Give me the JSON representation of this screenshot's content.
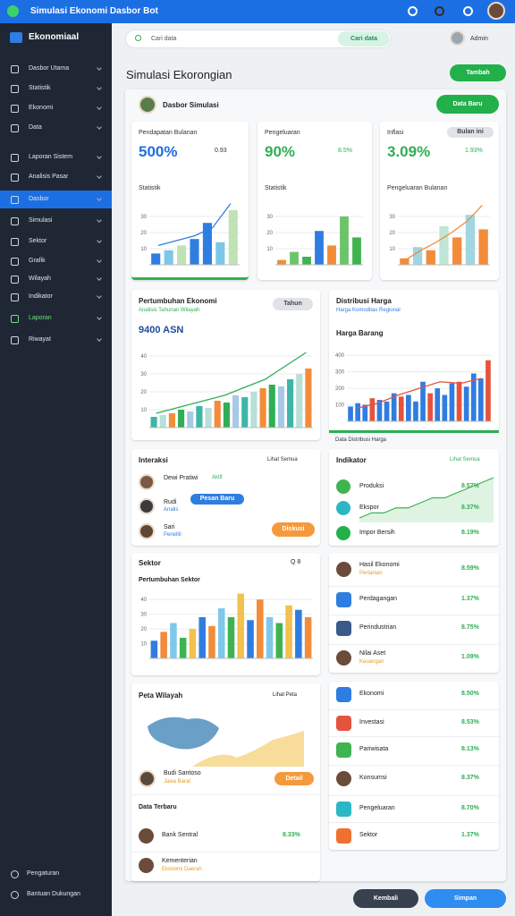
{
  "topbar": {
    "title": "Simulasi Ekonomi Dasbor Bot"
  },
  "sidebar": {
    "brand": "Ekonomiaal",
    "active": 6,
    "highlight": 12,
    "menu": [
      "Dasbor Utama",
      "Statistik",
      "Ekonomi",
      "Data",
      "Laporan Sistem",
      "Analisis Pasar",
      "Dasbor",
      "Simulasi",
      "Sektor",
      "Grafik",
      "Wilayah",
      "Indikator",
      "Laporan",
      "Riwayat"
    ],
    "bottom_menu": [
      "Pengaturan",
      "Bantuan Dukungan"
    ]
  },
  "search": {
    "placeholder": "Cari data",
    "button": "Cari data",
    "user": "Admin"
  },
  "page": {
    "title": "Simulasi Ekorongian",
    "button": "Tambah",
    "subtitle": "Dasbor Simulasi",
    "button2": "Data Baru"
  },
  "cards": [
    {
      "title": "Pendapatan Bulanan",
      "value": "500%",
      "delta": "0.93",
      "chart_title": "Statistik",
      "chart": {
        "ylim": [
          0,
          40
        ],
        "yticks": [
          10,
          20,
          30
        ],
        "values": [
          7,
          9,
          12,
          16,
          26,
          14,
          34
        ],
        "palette": [
          "#2f7de1",
          "#7cc7e8",
          "#bfe3b4",
          "#2f7de1"
        ],
        "line": [
          12,
          15,
          18,
          23,
          38
        ],
        "line_color": "#2f7de1"
      }
    },
    {
      "title": "Pengeluaran",
      "value": "90%",
      "delta": "8.5%",
      "chart_title": "Statistik",
      "chart": {
        "ylim": [
          0,
          40
        ],
        "yticks": [
          10,
          20,
          30
        ],
        "values": [
          3,
          8,
          5,
          21,
          12,
          30,
          17
        ],
        "palette": [
          "#f28c3a",
          "#6cc46a",
          "#3fb34f",
          "#2f7de1"
        ]
      }
    },
    {
      "title": "Inflasi",
      "value": "3.09%",
      "delta": "1.93%",
      "pill": "Bulan ini",
      "chart_title": "Pengeluaran Bulanan",
      "chart": {
        "ylim": [
          0,
          40
        ],
        "yticks": [
          10,
          20,
          30
        ],
        "values": [
          4,
          11,
          9,
          24,
          17,
          31,
          22
        ],
        "palette": [
          "#f28c3a",
          "#9fd6e0",
          "#f28c3a",
          "#bfe6d6"
        ],
        "line": [
          3,
          9,
          14,
          20,
          27,
          37
        ],
        "line_color": "#f28c3a"
      }
    }
  ],
  "growth": {
    "title": "Pertumbuhan Ekonomi",
    "subtitle": "Analisis Tahunan Wilayah",
    "pill": "Tahun",
    "value": "9400 ASN",
    "chart": {
      "ylim": [
        0,
        45
      ],
      "yticks": [
        10,
        20,
        30,
        40
      ],
      "values": [
        6,
        7,
        8,
        10,
        9,
        12,
        11,
        15,
        14,
        18,
        17,
        20,
        22,
        24,
        23,
        27,
        30,
        33
      ],
      "palette": [
        "#3db6a8",
        "#b7e0d7",
        "#f28c3a",
        "#2fae55",
        "#a7c9e8"
      ],
      "line": [
        8,
        10,
        12,
        14,
        16,
        18,
        21,
        24,
        27,
        32,
        37,
        42
      ],
      "line_color": "#2fae55"
    }
  },
  "price": {
    "title": "Distribusi Harga",
    "subtitle": "Harga Komoditas Regional",
    "value": "Harga Barang",
    "footer": "Data Distribusi Harga",
    "chart": {
      "ylim": [
        0,
        450
      ],
      "yticks": [
        100,
        200,
        300,
        400
      ],
      "values": [
        90,
        110,
        100,
        140,
        130,
        120,
        170,
        150,
        160,
        120,
        240,
        170,
        200,
        160,
        230,
        240,
        210,
        290,
        260,
        370
      ],
      "palette": [
        "#2f7de1",
        "#2f7de1",
        "#2f7de1",
        "#e5533d"
      ],
      "line": [
        80,
        110,
        160,
        200,
        240,
        230,
        260
      ],
      "line_color": "#e5533d"
    }
  },
  "interaction": {
    "title": "Interaksi",
    "action": "Lihat Semua",
    "chip": "Pesan Baru",
    "button": "Diskusi",
    "rows": [
      {
        "label": "Dewi Pratiwi",
        "sub": "Aktif"
      },
      {
        "label": "Rudi",
        "sub": "Analis"
      },
      {
        "label": "Sari",
        "sub": "Peneliti"
      }
    ]
  },
  "indicator": {
    "title": "Indikator",
    "action": "Lihat Semua",
    "trend": [
      2,
      3,
      3,
      4,
      4,
      5,
      6,
      6,
      7,
      8,
      9,
      10
    ],
    "rows": [
      {
        "label": "Produksi",
        "value": "8.57%"
      },
      {
        "label": "Ekspor",
        "value": "8.37%"
      },
      {
        "label": "Impor Bersih",
        "value": "8.19%"
      }
    ]
  },
  "sector": {
    "title": "Sektor",
    "action": "Q 8",
    "subtitle": "Pertumbuhan Sektor",
    "chart": {
      "ylim": [
        0,
        45
      ],
      "yticks": [
        10,
        20,
        30,
        40
      ],
      "values": [
        12,
        18,
        24,
        14,
        20,
        28,
        22,
        34,
        28,
        44,
        26,
        40,
        28,
        24,
        36,
        33,
        28
      ],
      "palette": [
        "#2f7de1",
        "#f28c3a",
        "#7fc8ea",
        "#3fb34f",
        "#f2c14e"
      ]
    }
  },
  "sector_list": {
    "rows": [
      {
        "label": "Hasil Ekonomi",
        "sub": "Pertanian",
        "value": "8.59%"
      },
      {
        "label": "Perdagangan",
        "value": "1.37%"
      },
      {
        "label": "Perindustrian",
        "value": "8.75%"
      },
      {
        "label": "Nilai Aset",
        "sub": "Keuangan",
        "value": "1.09%"
      }
    ]
  },
  "map": {
    "title": "Peta Wilayah",
    "action": "Lihat Peta",
    "person": "Budi Santoso",
    "person_sub": "Jawa Barat",
    "button": "Detail",
    "list_title": "Data Terbaru",
    "rows": [
      {
        "label": "Bank Sentral",
        "value": "8.33%"
      },
      {
        "label": "Kementerian",
        "sub": "Ekonomi Daerah"
      }
    ]
  },
  "right_list": {
    "rows": [
      {
        "label": "Ekonomi",
        "value": "8.50%"
      },
      {
        "label": "Investasi",
        "value": "8.53%"
      },
      {
        "label": "Pariwisata",
        "value": "8.13%"
      },
      {
        "label": "Konsumsi",
        "value": "8.37%"
      },
      {
        "label": "Pengeluaran",
        "value": "8.70%"
      },
      {
        "label": "Sektor",
        "value": "1.37%"
      }
    ]
  },
  "footer": {
    "back": "Kembali",
    "save": "Simpan"
  }
}
